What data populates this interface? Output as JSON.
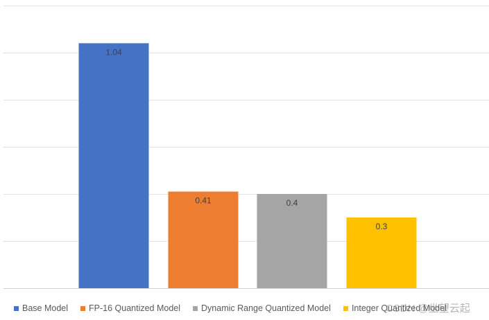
{
  "chart_data": {
    "type": "bar",
    "categories": [
      "Base Model",
      "FP-16 Quantized Model",
      "Dynamic Range Quantized Model",
      "Integer Quantized Model"
    ],
    "values": [
      1.04,
      0.41,
      0.4,
      0.3
    ],
    "data_labels": [
      "1.04",
      "0.41",
      "0.4",
      "0.3"
    ],
    "colors": [
      "#4472C4",
      "#ED7D31",
      "#A5A5A5",
      "#FFC000"
    ],
    "title": "",
    "xlabel": "",
    "ylabel": "",
    "ylim": [
      0,
      1.2
    ],
    "gridline_step": 0.2,
    "grid": true,
    "legend_position": "bottom",
    "legend": [
      {
        "label": "Base Model",
        "color": "#4472C4"
      },
      {
        "label": "FP-16 Quantized Model",
        "color": "#ED7D31"
      },
      {
        "label": "Dynamic Range Quantized Model",
        "color": "#A5A5A5"
      },
      {
        "label": "Integer Quantized Model",
        "color": "#FFC000"
      }
    ]
  },
  "watermark": "CSDN @坐望云起"
}
